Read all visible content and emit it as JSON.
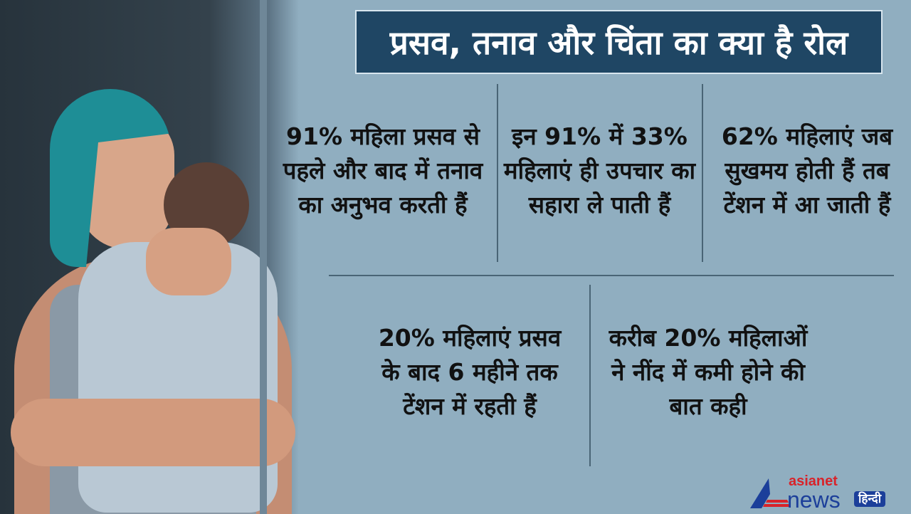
{
  "title": "प्रसव, तनाव और चिंता का क्या है रोल",
  "stats": [
    "91% महिला प्रसव से पहले और बाद में तनाव का अनुभव करती हैं",
    "इन 91% में 33% महिलाएं ही उपचार का सहारा ले पाती हैं",
    "62% महिलाएं जब सुखमय होती हैं तब टेंशन में आ जाती हैं",
    "20% महिलाएं प्रसव के बाद 6 महीने तक टेंशन में रहती हैं",
    "करीब 20% महिलाओं ने नींद में कमी होने की बात कही"
  ],
  "logo": {
    "line1": "asianet",
    "line2": "news",
    "badge": "हिन्दी"
  },
  "colors": {
    "background": "#90aec0",
    "title_bg": "#1f4664",
    "logo_red": "#d8232a",
    "logo_blue": "#1c3f9a"
  }
}
